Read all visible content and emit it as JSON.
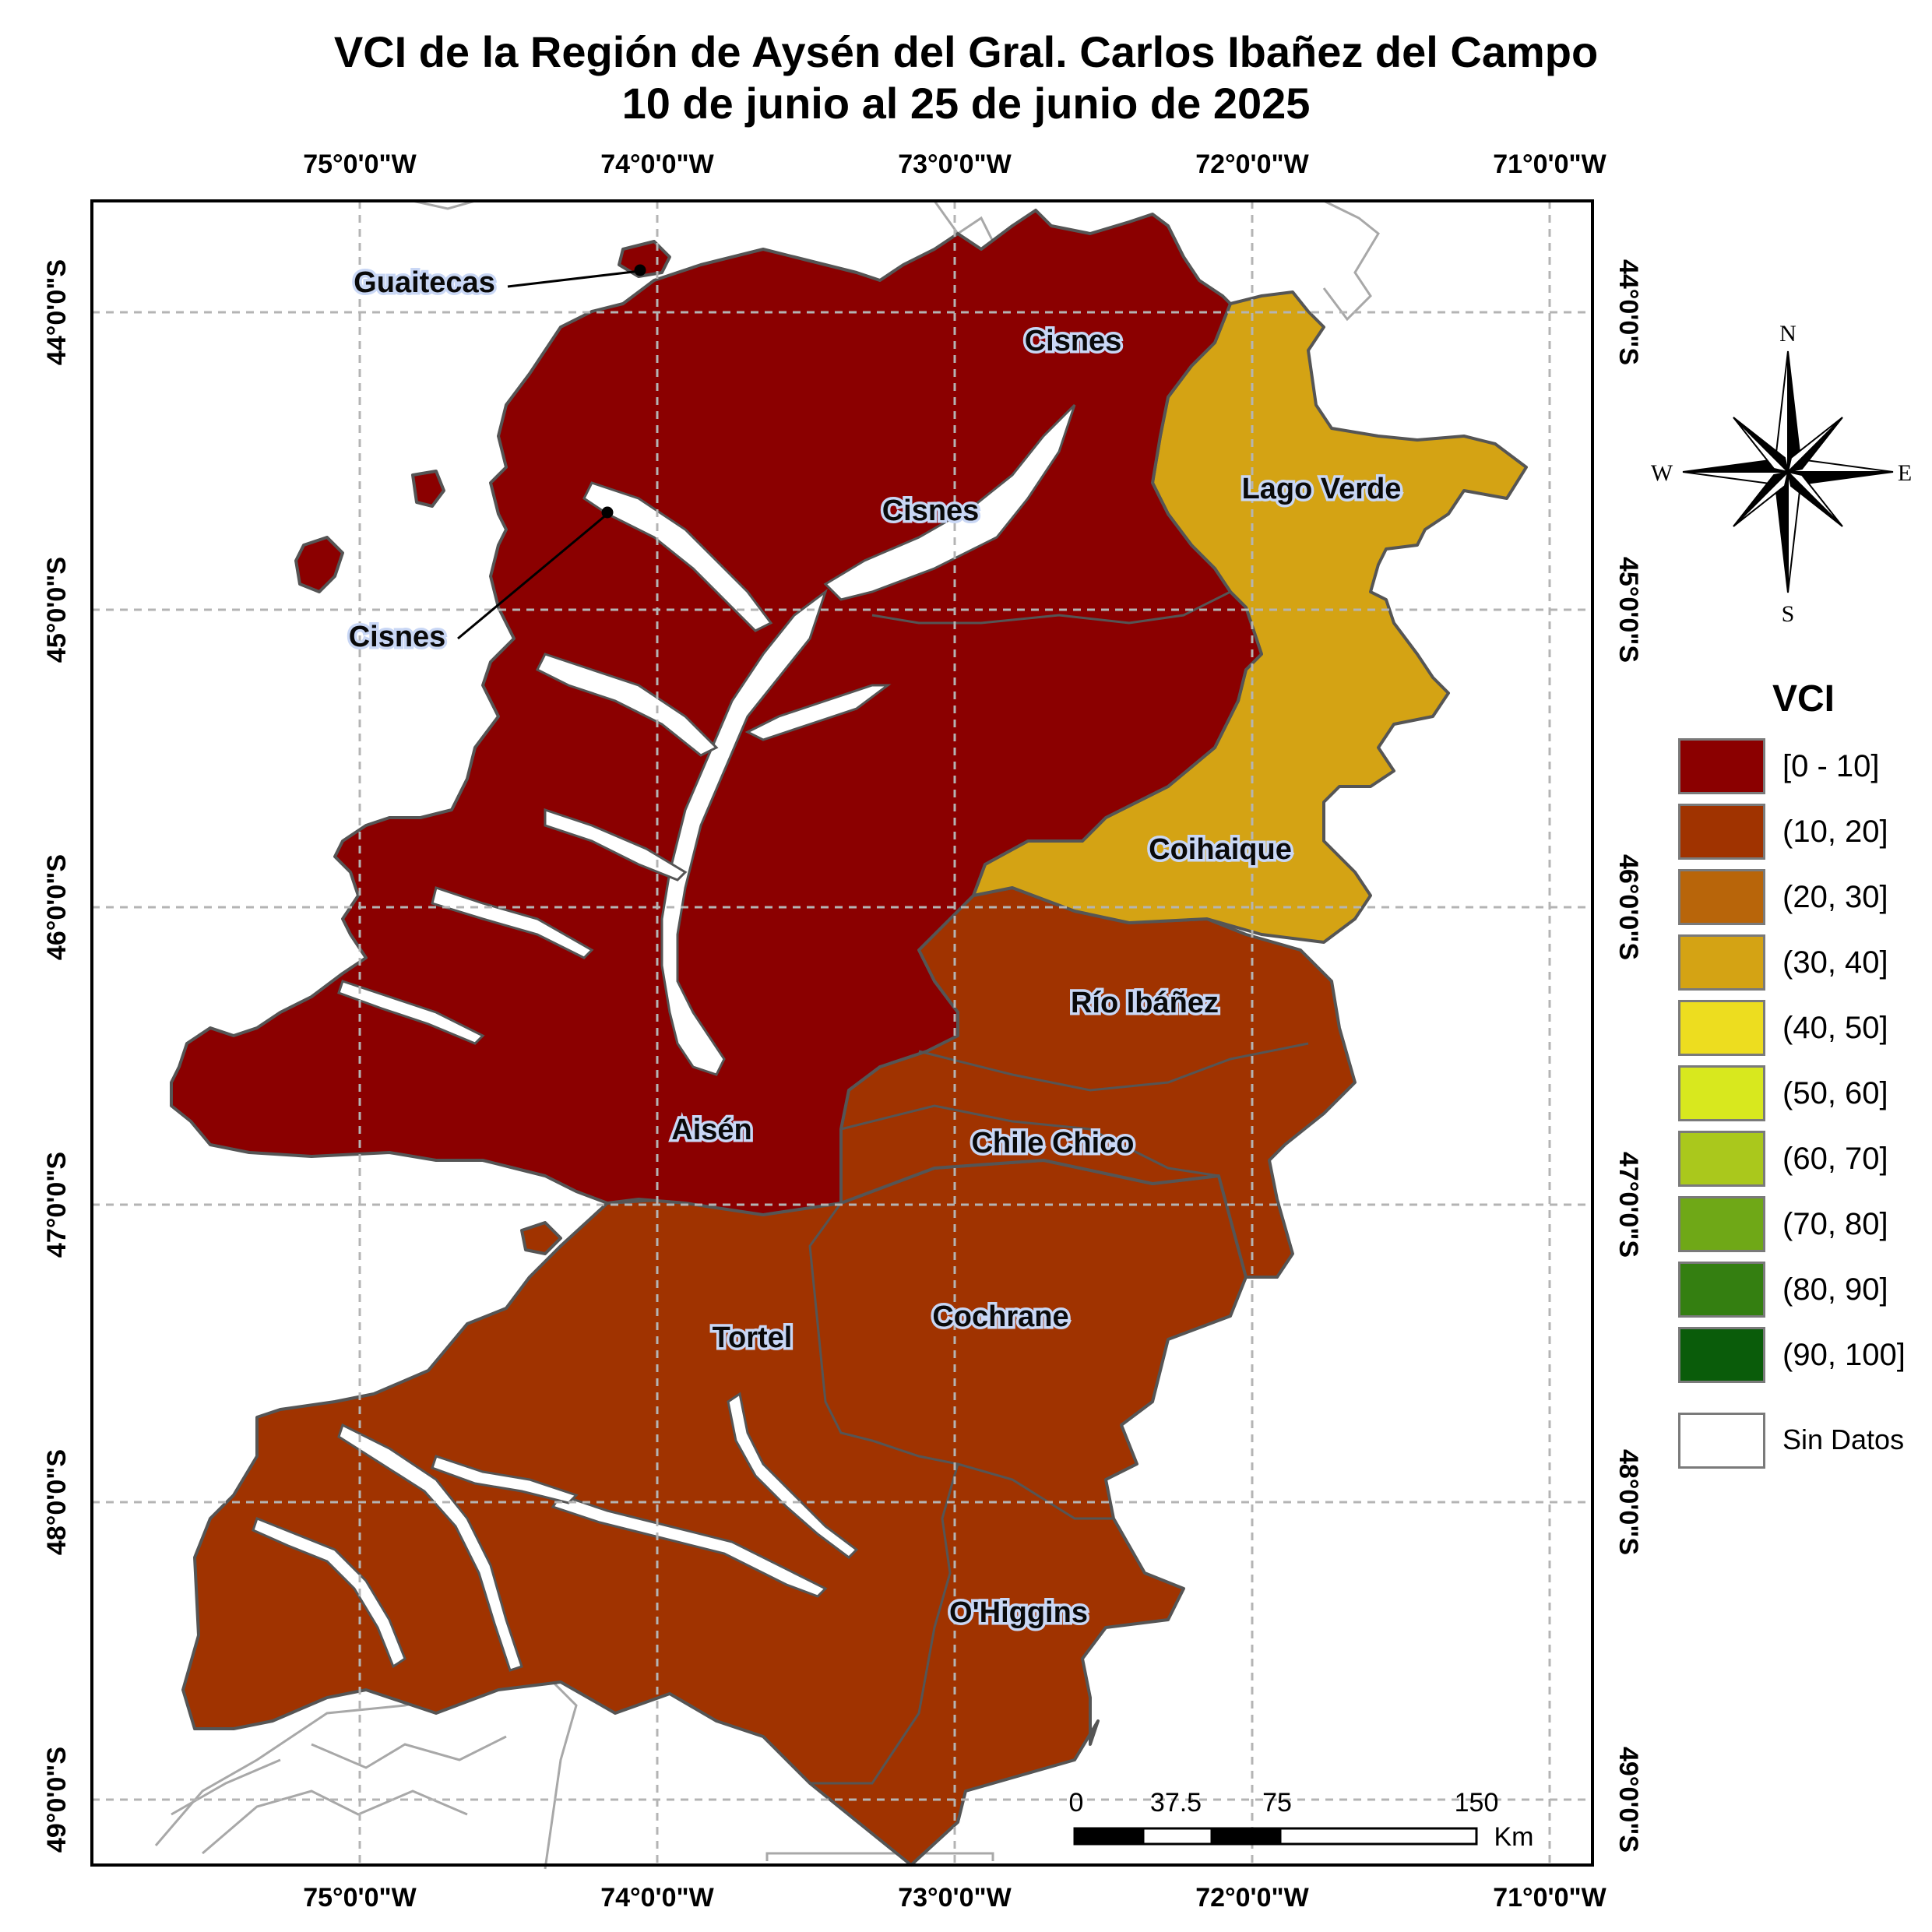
{
  "title": {
    "line1": "VCI de la Región de Aysén del Gral. Carlos Ibañez del Campo",
    "line2": "10 de junio al 25 de junio de 2025"
  },
  "axes": {
    "longitude_labels": [
      "75°0'0\"W",
      "74°0'0\"W",
      "73°0'0\"W",
      "72°0'0\"W",
      "71°0'0\"W"
    ],
    "latitude_labels": [
      "44°0'0\"S",
      "45°0'0\"S",
      "46°0'0\"S",
      "47°0'0\"S",
      "48°0'0\"S",
      "49°0'0\"S"
    ]
  },
  "communes": [
    {
      "name": "Guaitecas",
      "vci_class": "[0 - 10]"
    },
    {
      "name": "Cisnes",
      "vci_class": "[0 - 10]"
    },
    {
      "name": "Cisnes",
      "vci_class": "[0 - 10]"
    },
    {
      "name": "Cisnes",
      "vci_class": "[0 - 10]"
    },
    {
      "name": "Lago Verde",
      "vci_class": "(30, 40]"
    },
    {
      "name": "Coihaique",
      "vci_class": "(30, 40]"
    },
    {
      "name": "Aisén",
      "vci_class": "[0 - 10]"
    },
    {
      "name": "Río Ibáñez",
      "vci_class": "(10, 20]"
    },
    {
      "name": "Chile Chico",
      "vci_class": "(10, 20]"
    },
    {
      "name": "Tortel",
      "vci_class": "(10, 20]"
    },
    {
      "name": "Cochrane",
      "vci_class": "(10, 20]"
    },
    {
      "name": "O'Higgins",
      "vci_class": "(10, 20]"
    }
  ],
  "compass": {
    "n": "N",
    "s": "S",
    "e": "E",
    "w": "W"
  },
  "legend": {
    "title": "VCI",
    "items": [
      {
        "label": "[0 - 10]",
        "color": "#8b0000"
      },
      {
        "label": "(10, 20]",
        "color": "#a03300"
      },
      {
        "label": "(20, 30]",
        "color": "#b8650a"
      },
      {
        "label": "(30, 40]",
        "color": "#d4a314"
      },
      {
        "label": "(40, 50]",
        "color": "#eddd1f"
      },
      {
        "label": "(50, 60]",
        "color": "#d8e81e"
      },
      {
        "label": "(60, 70]",
        "color": "#aac81c"
      },
      {
        "label": "(70, 80]",
        "color": "#6fa817"
      },
      {
        "label": "(80, 90]",
        "color": "#347f11"
      },
      {
        "label": "(90, 100]",
        "color": "#0a5c0a"
      }
    ],
    "no_data": {
      "label": "Sin Datos",
      "color": "#ffffff"
    }
  },
  "scale_bar": {
    "ticks": [
      "0",
      "37.5",
      "75",
      "150"
    ],
    "unit": "Km"
  }
}
